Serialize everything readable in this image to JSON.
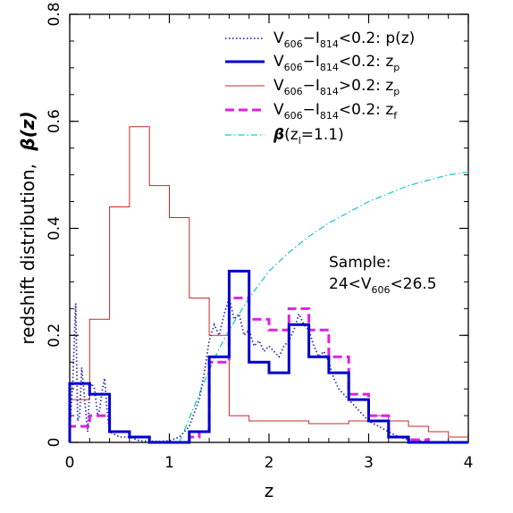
{
  "chart_data": {
    "type": "line",
    "xlabel": "z",
    "ylabel_text": "redshift distribution,",
    "ylabel_symbol": "β(z)",
    "xlim": [
      0,
      4
    ],
    "ylim": [
      0,
      0.8
    ],
    "xticks": [
      0,
      1,
      2,
      3,
      4
    ],
    "xtick_labels": [
      "0",
      "1",
      "2",
      "3",
      "4"
    ],
    "yticks": [
      0,
      0.2,
      0.4,
      0.6,
      0.8
    ],
    "ytick_labels": [
      "0",
      "0.2",
      "0.4",
      "0.6",
      "0.8"
    ],
    "legend_position": "top-right",
    "annotation": {
      "line1": "Sample:",
      "line2_pre": "24<V",
      "line2_sub": "606",
      "line2_post": "<26.5"
    },
    "series": [
      {
        "id": "pz",
        "legend": {
          "a": "V",
          "a_sub": "606",
          "b": "−I",
          "b_sub": "814",
          "c": "<0.2:  p(z)",
          "c_sub": ""
        },
        "color": "#3030b0",
        "style": "dotted",
        "kind": "line",
        "x": [
          0.0,
          0.03,
          0.06,
          0.08,
          0.1,
          0.12,
          0.15,
          0.18,
          0.2,
          0.22,
          0.25,
          0.28,
          0.3,
          0.32,
          0.35,
          0.38,
          0.4,
          0.5,
          0.6,
          0.7,
          0.8,
          0.9,
          1.0,
          1.1,
          1.2,
          1.3,
          1.35,
          1.4,
          1.45,
          1.5,
          1.55,
          1.6,
          1.65,
          1.7,
          1.75,
          1.8,
          1.85,
          1.9,
          1.95,
          2.0,
          2.05,
          2.1,
          2.15,
          2.2,
          2.25,
          2.3,
          2.35,
          2.4,
          2.45,
          2.5,
          2.55,
          2.6,
          2.65,
          2.7,
          2.75,
          2.8,
          2.9,
          3.0,
          3.1,
          3.2,
          3.3,
          3.4,
          3.5,
          3.6,
          4.0
        ],
        "y": [
          0.02,
          0.11,
          0.26,
          0.04,
          0.05,
          0.14,
          0.08,
          0.02,
          0.1,
          0.11,
          0.1,
          0.05,
          0.06,
          0.09,
          0.12,
          0.05,
          0.02,
          0.01,
          0.01,
          0.003,
          0.002,
          0.002,
          0.003,
          0.01,
          0.03,
          0.08,
          0.13,
          0.19,
          0.22,
          0.2,
          0.24,
          0.27,
          0.23,
          0.24,
          0.2,
          0.21,
          0.18,
          0.19,
          0.17,
          0.18,
          0.17,
          0.16,
          0.18,
          0.19,
          0.21,
          0.24,
          0.22,
          0.21,
          0.18,
          0.16,
          0.17,
          0.15,
          0.12,
          0.1,
          0.09,
          0.08,
          0.06,
          0.04,
          0.03,
          0.02,
          0.01,
          0.005,
          0.003,
          0.0,
          0.0
        ]
      },
      {
        "id": "zp-blue",
        "legend": {
          "a": "V",
          "a_sub": "606",
          "b": "−I",
          "b_sub": "814",
          "c": "<0.2:  z",
          "c_sub": "p"
        },
        "color": "#0000cc",
        "style": "solid-thick",
        "kind": "step",
        "edges": [
          0.0,
          0.2,
          0.4,
          0.6,
          0.8,
          1.0,
          1.2,
          1.4,
          1.6,
          1.8,
          2.0,
          2.2,
          2.4,
          2.6,
          2.8,
          3.0,
          3.2,
          3.4,
          3.6,
          3.8,
          4.0
        ],
        "values": [
          0.11,
          0.09,
          0.02,
          0.01,
          0.0,
          0.0,
          0.02,
          0.16,
          0.32,
          0.15,
          0.13,
          0.22,
          0.16,
          0.13,
          0.08,
          0.04,
          0.01,
          0.0,
          0.0,
          0.0
        ]
      },
      {
        "id": "zp-red",
        "legend": {
          "a": "V",
          "a_sub": "606",
          "b": "−I",
          "b_sub": "814",
          "c": ">0.2:  z",
          "c_sub": "p"
        },
        "color": "#c82828",
        "style": "solid-thin",
        "kind": "step",
        "edges": [
          0.0,
          0.2,
          0.4,
          0.6,
          0.8,
          1.0,
          1.2,
          1.4,
          1.6,
          1.8,
          2.0,
          2.2,
          2.4,
          2.6,
          2.8,
          3.0,
          3.2,
          3.4,
          3.6,
          3.8,
          4.0
        ],
        "values": [
          0.08,
          0.23,
          0.44,
          0.59,
          0.48,
          0.42,
          0.27,
          0.2,
          0.05,
          0.04,
          0.04,
          0.04,
          0.035,
          0.035,
          0.04,
          0.05,
          0.04,
          0.03,
          0.02,
          0.01
        ]
      },
      {
        "id": "zf",
        "legend": {
          "a": "V",
          "a_sub": "606",
          "b": "−I",
          "b_sub": "814",
          "c": "<0.2:  z",
          "c_sub": "f"
        },
        "color": "#e020e0",
        "style": "dashed",
        "kind": "step",
        "edges": [
          0.0,
          0.2,
          0.4,
          0.6,
          0.8,
          1.0,
          1.2,
          1.3,
          1.4,
          1.6,
          1.8,
          2.0,
          2.2,
          2.4,
          2.6,
          2.8,
          3.0,
          3.2,
          3.4,
          3.6,
          4.0
        ],
        "values": [
          0.03,
          0.05,
          0.02,
          0.01,
          0.0,
          0.0,
          0.01,
          0.02,
          0.15,
          0.27,
          0.23,
          0.21,
          0.25,
          0.21,
          0.16,
          0.09,
          0.05,
          0.01,
          0.005,
          0.0
        ]
      },
      {
        "id": "beta",
        "legend": {
          "a": "β",
          "a_sub": "",
          "b": "(z",
          "b_sub": "l",
          "c": "=1.1)",
          "c_sub": ""
        },
        "color": "#20c8d0",
        "style": "dashdot",
        "kind": "line",
        "x": [
          1.1,
          1.2,
          1.3,
          1.4,
          1.5,
          1.6,
          1.8,
          2.0,
          2.2,
          2.4,
          2.6,
          2.8,
          3.0,
          3.2,
          3.4,
          3.6,
          3.8,
          4.0
        ],
        "y": [
          0.0,
          0.045,
          0.09,
          0.135,
          0.175,
          0.21,
          0.27,
          0.32,
          0.355,
          0.385,
          0.41,
          0.43,
          0.45,
          0.465,
          0.48,
          0.49,
          0.5,
          0.505
        ]
      }
    ]
  }
}
